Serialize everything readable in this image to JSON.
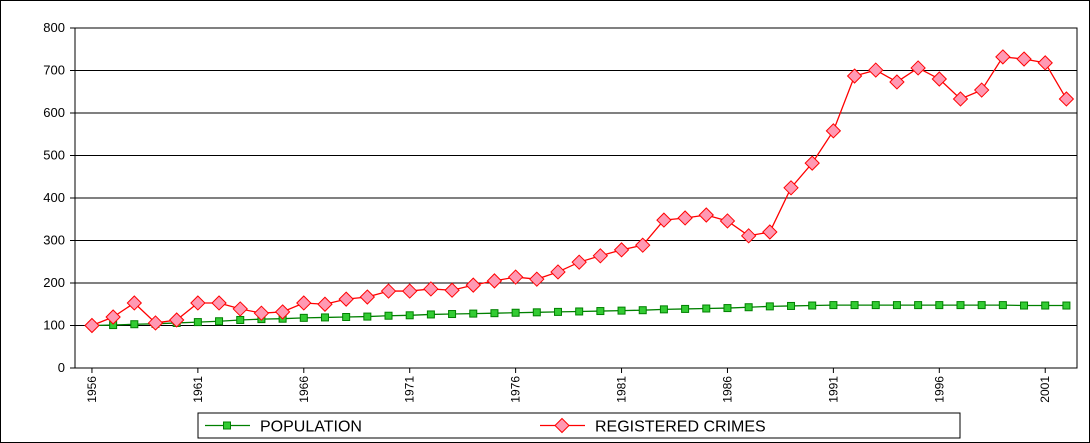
{
  "chart_data": {
    "type": "line",
    "x": [
      1956,
      1957,
      1958,
      1959,
      1960,
      1961,
      1962,
      1963,
      1964,
      1965,
      1966,
      1967,
      1968,
      1969,
      1970,
      1971,
      1972,
      1973,
      1974,
      1975,
      1976,
      1977,
      1978,
      1979,
      1980,
      1981,
      1982,
      1983,
      1984,
      1985,
      1986,
      1987,
      1988,
      1989,
      1990,
      1991,
      1992,
      1993,
      1994,
      1995,
      1996,
      1997,
      1998,
      1999,
      2000,
      2001,
      2002
    ],
    "series": [
      {
        "name": "POPULATION",
        "color": "#008000",
        "marker_fill": "#33cc33",
        "marker": "square",
        "values": [
          100,
          101,
          103,
          104,
          106,
          108,
          110,
          113,
          115,
          116,
          118,
          119,
          120,
          121,
          123,
          124,
          126,
          127,
          128,
          129,
          130,
          131,
          132,
          133,
          134,
          135,
          136,
          138,
          139,
          140,
          141,
          143,
          145,
          146,
          147,
          148,
          148,
          148,
          148,
          148,
          148,
          148,
          148,
          148,
          147,
          147,
          147
        ]
      },
      {
        "name": "REGISTERED CRIMES",
        "color": "#ff0000",
        "marker_fill": "#ff99b3",
        "marker": "diamond",
        "values": [
          100,
          120,
          153,
          106,
          113,
          153,
          153,
          139,
          129,
          132,
          153,
          150,
          162,
          167,
          181,
          181,
          186,
          183,
          195,
          205,
          214,
          209,
          226,
          249,
          264,
          278,
          289,
          348,
          353,
          360,
          346,
          311,
          320,
          424,
          482,
          558,
          687,
          701,
          673,
          706,
          680,
          633,
          654,
          732,
          727,
          718,
          633
        ]
      }
    ],
    "xlim": [
      1955.2,
      2002.5
    ],
    "xticks": [
      1956,
      1961,
      1966,
      1971,
      1976,
      1981,
      1986,
      1991,
      1996,
      2001
    ],
    "ylim": [
      0,
      800
    ],
    "yticks": [
      0,
      100,
      200,
      300,
      400,
      500,
      600,
      700,
      800
    ],
    "grid": true,
    "legend": "bottom"
  }
}
